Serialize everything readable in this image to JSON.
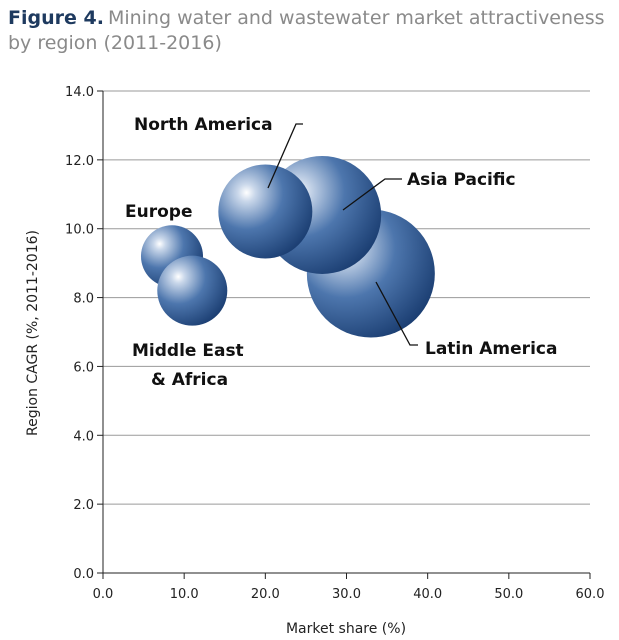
{
  "figure": {
    "label": "Figure 4.",
    "title": "Mining water and wastewater market attractiveness by region (2011-2016)"
  },
  "chart_data": {
    "type": "scatter",
    "xlabel": "Market share (%)",
    "ylabel": "Region CAGR (%, 2011-2016)",
    "xlim": [
      0,
      60
    ],
    "ylim": [
      0,
      14
    ],
    "x_ticks": [
      "0.0",
      "10.0",
      "20.0",
      "30.0",
      "40.0",
      "50.0",
      "60.0"
    ],
    "y_ticks": [
      "0.0",
      "2.0",
      "4.0",
      "6.0",
      "8.0",
      "10.0",
      "12.0",
      "14.0"
    ],
    "grid": "horizontal",
    "bubble_color": "#2f5a94",
    "points": [
      {
        "name": "Latin America",
        "x": 33,
        "y": 8.7,
        "size": 64
      },
      {
        "name": "Asia Pacific",
        "x": 27,
        "y": 10.4,
        "size": 59
      },
      {
        "name": "North America",
        "x": 20,
        "y": 10.5,
        "size": 47
      },
      {
        "name": "Europe",
        "x": 8.5,
        "y": 9.2,
        "size": 31
      },
      {
        "name": "Middle East\n& Africa",
        "x": 11,
        "y": 8.2,
        "size": 35
      }
    ]
  }
}
